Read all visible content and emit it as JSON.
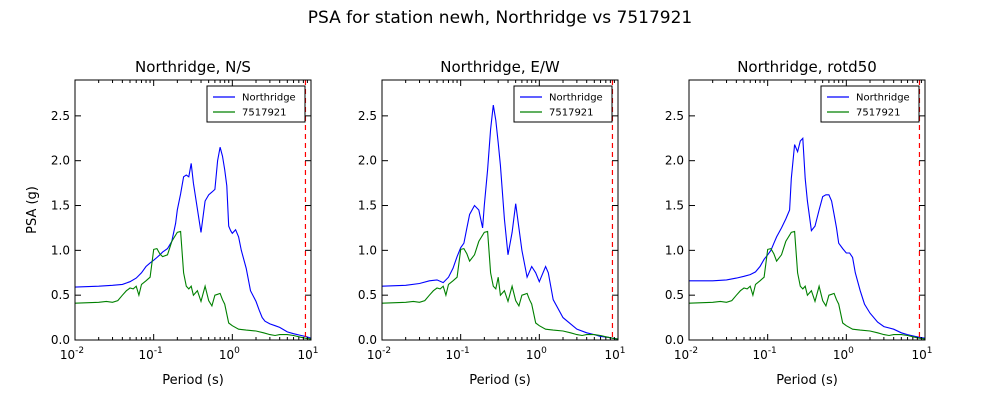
{
  "suptitle": "PSA for station newh, Northridge vs 7517921",
  "colors": {
    "series1": "#0000ff",
    "series2": "#008000",
    "marker": "#ff0000"
  },
  "chart_data": [
    {
      "type": "line",
      "title": "Northridge, N/S",
      "xlabel": "Period (s)",
      "ylabel": "PSA (g)",
      "xscale": "log",
      "xlim": [
        0.01,
        10
      ],
      "ylim": [
        0,
        2.9
      ],
      "xticks": [
        0.01,
        0.1,
        1,
        10
      ],
      "xtick_labels": [
        [
          "10",
          "-2"
        ],
        [
          "10",
          "-1"
        ],
        [
          "10",
          "0"
        ],
        [
          "10",
          "1"
        ]
      ],
      "yticks": [
        "0.0",
        "0.5",
        "1.0",
        "1.5",
        "2.0",
        "2.5"
      ],
      "legend": "top-right",
      "vline": 8.5,
      "series": [
        {
          "name": "Northridge",
          "x": [
            0.01,
            0.02,
            0.03,
            0.04,
            0.05,
            0.06,
            0.07,
            0.08,
            0.09,
            0.1,
            0.11,
            0.12,
            0.13,
            0.15,
            0.17,
            0.19,
            0.2,
            0.22,
            0.24,
            0.26,
            0.28,
            0.3,
            0.32,
            0.36,
            0.4,
            0.45,
            0.5,
            0.55,
            0.6,
            0.65,
            0.7,
            0.75,
            0.8,
            0.85,
            0.9,
            0.95,
            1.0,
            1.1,
            1.2,
            1.3,
            1.5,
            1.7,
            2.0,
            2.2,
            2.4,
            2.6,
            3.0,
            3.5,
            4.0,
            5.0,
            6.0,
            7.5,
            8.5,
            10.0
          ],
          "y": [
            0.59,
            0.6,
            0.61,
            0.62,
            0.65,
            0.69,
            0.75,
            0.82,
            0.86,
            0.89,
            0.92,
            0.95,
            0.98,
            1.02,
            1.1,
            1.3,
            1.45,
            1.63,
            1.82,
            1.84,
            1.82,
            1.97,
            1.75,
            1.46,
            1.2,
            1.55,
            1.62,
            1.65,
            1.68,
            2.0,
            2.15,
            2.05,
            1.9,
            1.72,
            1.27,
            1.22,
            1.19,
            1.23,
            1.15,
            1.0,
            0.8,
            0.55,
            0.43,
            0.33,
            0.25,
            0.21,
            0.18,
            0.16,
            0.14,
            0.09,
            0.07,
            0.05,
            0.04,
            0.02
          ]
        },
        {
          "name": "7517921",
          "x": [
            0.01,
            0.02,
            0.025,
            0.03,
            0.035,
            0.04,
            0.045,
            0.05,
            0.055,
            0.06,
            0.065,
            0.07,
            0.08,
            0.09,
            0.1,
            0.11,
            0.12,
            0.13,
            0.15,
            0.17,
            0.2,
            0.22,
            0.24,
            0.26,
            0.28,
            0.3,
            0.32,
            0.36,
            0.4,
            0.45,
            0.5,
            0.55,
            0.6,
            0.65,
            0.7,
            0.75,
            0.8,
            0.9,
            1.0,
            1.2,
            1.5,
            2.0,
            2.5,
            3.0,
            3.5,
            4.0,
            5.0,
            6.0,
            7.5,
            8.5,
            10.0
          ],
          "y": [
            0.41,
            0.42,
            0.43,
            0.42,
            0.44,
            0.5,
            0.55,
            0.58,
            0.57,
            0.6,
            0.5,
            0.62,
            0.66,
            0.7,
            1.01,
            1.02,
            0.96,
            0.93,
            0.95,
            1.1,
            1.2,
            1.21,
            0.75,
            0.6,
            0.57,
            0.6,
            0.5,
            0.55,
            0.43,
            0.6,
            0.44,
            0.38,
            0.5,
            0.51,
            0.52,
            0.45,
            0.4,
            0.19,
            0.16,
            0.12,
            0.11,
            0.1,
            0.08,
            0.06,
            0.05,
            0.06,
            0.06,
            0.05,
            0.03,
            0.02,
            0.01
          ]
        }
      ]
    },
    {
      "type": "line",
      "title": "Northridge, E/W",
      "xlabel": "Period (s)",
      "ylabel": "",
      "xscale": "log",
      "xlim": [
        0.01,
        10
      ],
      "ylim": [
        0,
        2.9
      ],
      "xticks": [
        0.01,
        0.1,
        1,
        10
      ],
      "xtick_labels": [
        [
          "10",
          "-2"
        ],
        [
          "10",
          "-1"
        ],
        [
          "10",
          "0"
        ],
        [
          "10",
          "1"
        ]
      ],
      "yticks": [
        "0.0",
        "0.5",
        "1.0",
        "1.5",
        "2.0",
        "2.5"
      ],
      "legend": "top-right",
      "vline": 8.5,
      "series": [
        {
          "name": "Northridge",
          "x": [
            0.01,
            0.02,
            0.03,
            0.04,
            0.05,
            0.06,
            0.07,
            0.08,
            0.09,
            0.1,
            0.11,
            0.12,
            0.13,
            0.15,
            0.17,
            0.19,
            0.2,
            0.22,
            0.24,
            0.26,
            0.28,
            0.3,
            0.32,
            0.36,
            0.4,
            0.45,
            0.5,
            0.55,
            0.6,
            0.7,
            0.8,
            0.9,
            1.0,
            1.2,
            1.3,
            1.5,
            2.0,
            2.5,
            3.0,
            4.0,
            5.0,
            6.0,
            7.5,
            8.5,
            10.0
          ],
          "y": [
            0.6,
            0.61,
            0.63,
            0.66,
            0.67,
            0.64,
            0.7,
            0.8,
            0.93,
            1.03,
            1.08,
            1.25,
            1.4,
            1.5,
            1.45,
            1.25,
            1.5,
            1.9,
            2.35,
            2.62,
            2.45,
            2.2,
            1.95,
            1.35,
            0.95,
            1.2,
            1.52,
            1.25,
            1.0,
            0.7,
            0.82,
            0.75,
            0.65,
            0.82,
            0.75,
            0.45,
            0.25,
            0.18,
            0.12,
            0.08,
            0.06,
            0.04,
            0.03,
            0.02,
            0.01
          ]
        },
        {
          "name": "7517921",
          "x": [
            0.01,
            0.02,
            0.025,
            0.03,
            0.035,
            0.04,
            0.045,
            0.05,
            0.055,
            0.06,
            0.065,
            0.07,
            0.08,
            0.09,
            0.1,
            0.11,
            0.12,
            0.13,
            0.15,
            0.17,
            0.2,
            0.22,
            0.24,
            0.26,
            0.28,
            0.3,
            0.32,
            0.36,
            0.4,
            0.45,
            0.5,
            0.55,
            0.6,
            0.65,
            0.7,
            0.75,
            0.8,
            0.9,
            1.0,
            1.2,
            1.5,
            2.0,
            2.5,
            3.0,
            3.5,
            4.0,
            5.0,
            6.0,
            7.5,
            8.5,
            10.0
          ],
          "y": [
            0.41,
            0.42,
            0.43,
            0.42,
            0.44,
            0.5,
            0.55,
            0.58,
            0.57,
            0.6,
            0.5,
            0.62,
            0.66,
            0.7,
            1.01,
            1.02,
            0.96,
            0.88,
            0.95,
            1.1,
            1.2,
            1.21,
            0.75,
            0.6,
            0.57,
            0.7,
            0.5,
            0.55,
            0.43,
            0.6,
            0.44,
            0.38,
            0.5,
            0.51,
            0.52,
            0.45,
            0.4,
            0.19,
            0.16,
            0.12,
            0.11,
            0.1,
            0.08,
            0.06,
            0.05,
            0.06,
            0.06,
            0.05,
            0.03,
            0.02,
            0.01
          ]
        }
      ]
    },
    {
      "type": "line",
      "title": "Northridge, rotd50",
      "xlabel": "Period (s)",
      "ylabel": "",
      "xscale": "log",
      "xlim": [
        0.01,
        10
      ],
      "ylim": [
        0,
        2.9
      ],
      "xticks": [
        0.01,
        0.1,
        1,
        10
      ],
      "xtick_labels": [
        [
          "10",
          "-2"
        ],
        [
          "10",
          "-1"
        ],
        [
          "10",
          "0"
        ],
        [
          "10",
          "1"
        ]
      ],
      "yticks": [
        "0.0",
        "0.5",
        "1.0",
        "1.5",
        "2.0",
        "2.5"
      ],
      "legend": "top-right",
      "vline": 8.5,
      "series": [
        {
          "name": "Northridge",
          "x": [
            0.01,
            0.02,
            0.03,
            0.04,
            0.05,
            0.06,
            0.07,
            0.08,
            0.09,
            0.1,
            0.11,
            0.12,
            0.13,
            0.15,
            0.17,
            0.19,
            0.2,
            0.22,
            0.24,
            0.26,
            0.28,
            0.3,
            0.32,
            0.36,
            0.4,
            0.45,
            0.5,
            0.55,
            0.6,
            0.65,
            0.7,
            0.75,
            0.8,
            0.9,
            1.0,
            1.1,
            1.2,
            1.3,
            1.5,
            1.7,
            2.0,
            2.5,
            3.0,
            4.0,
            5.0,
            6.0,
            7.5,
            8.5,
            10.0
          ],
          "y": [
            0.66,
            0.66,
            0.67,
            0.69,
            0.71,
            0.73,
            0.76,
            0.82,
            0.9,
            0.95,
            1.0,
            1.08,
            1.15,
            1.25,
            1.35,
            1.45,
            1.8,
            2.18,
            2.1,
            2.22,
            2.25,
            1.8,
            1.55,
            1.22,
            1.27,
            1.45,
            1.6,
            1.62,
            1.62,
            1.55,
            1.4,
            1.25,
            1.08,
            1.02,
            0.97,
            0.97,
            0.92,
            0.75,
            0.55,
            0.4,
            0.3,
            0.2,
            0.15,
            0.12,
            0.08,
            0.06,
            0.04,
            0.03,
            0.02
          ]
        },
        {
          "name": "7517921",
          "x": [
            0.01,
            0.02,
            0.025,
            0.03,
            0.035,
            0.04,
            0.045,
            0.05,
            0.055,
            0.06,
            0.065,
            0.07,
            0.08,
            0.09,
            0.1,
            0.11,
            0.12,
            0.13,
            0.15,
            0.17,
            0.2,
            0.22,
            0.24,
            0.26,
            0.28,
            0.3,
            0.32,
            0.36,
            0.4,
            0.45,
            0.5,
            0.55,
            0.6,
            0.65,
            0.7,
            0.75,
            0.8,
            0.9,
            1.0,
            1.2,
            1.5,
            2.0,
            2.5,
            3.0,
            3.5,
            4.0,
            5.0,
            6.0,
            7.5,
            8.5,
            10.0
          ],
          "y": [
            0.41,
            0.42,
            0.43,
            0.42,
            0.44,
            0.5,
            0.55,
            0.58,
            0.57,
            0.6,
            0.5,
            0.62,
            0.66,
            0.7,
            1.01,
            1.02,
            0.96,
            0.88,
            0.95,
            1.1,
            1.2,
            1.21,
            0.75,
            0.6,
            0.57,
            0.6,
            0.5,
            0.55,
            0.43,
            0.6,
            0.44,
            0.38,
            0.5,
            0.51,
            0.52,
            0.45,
            0.4,
            0.19,
            0.16,
            0.12,
            0.11,
            0.1,
            0.08,
            0.06,
            0.05,
            0.06,
            0.06,
            0.05,
            0.03,
            0.02,
            0.01
          ]
        }
      ]
    }
  ]
}
